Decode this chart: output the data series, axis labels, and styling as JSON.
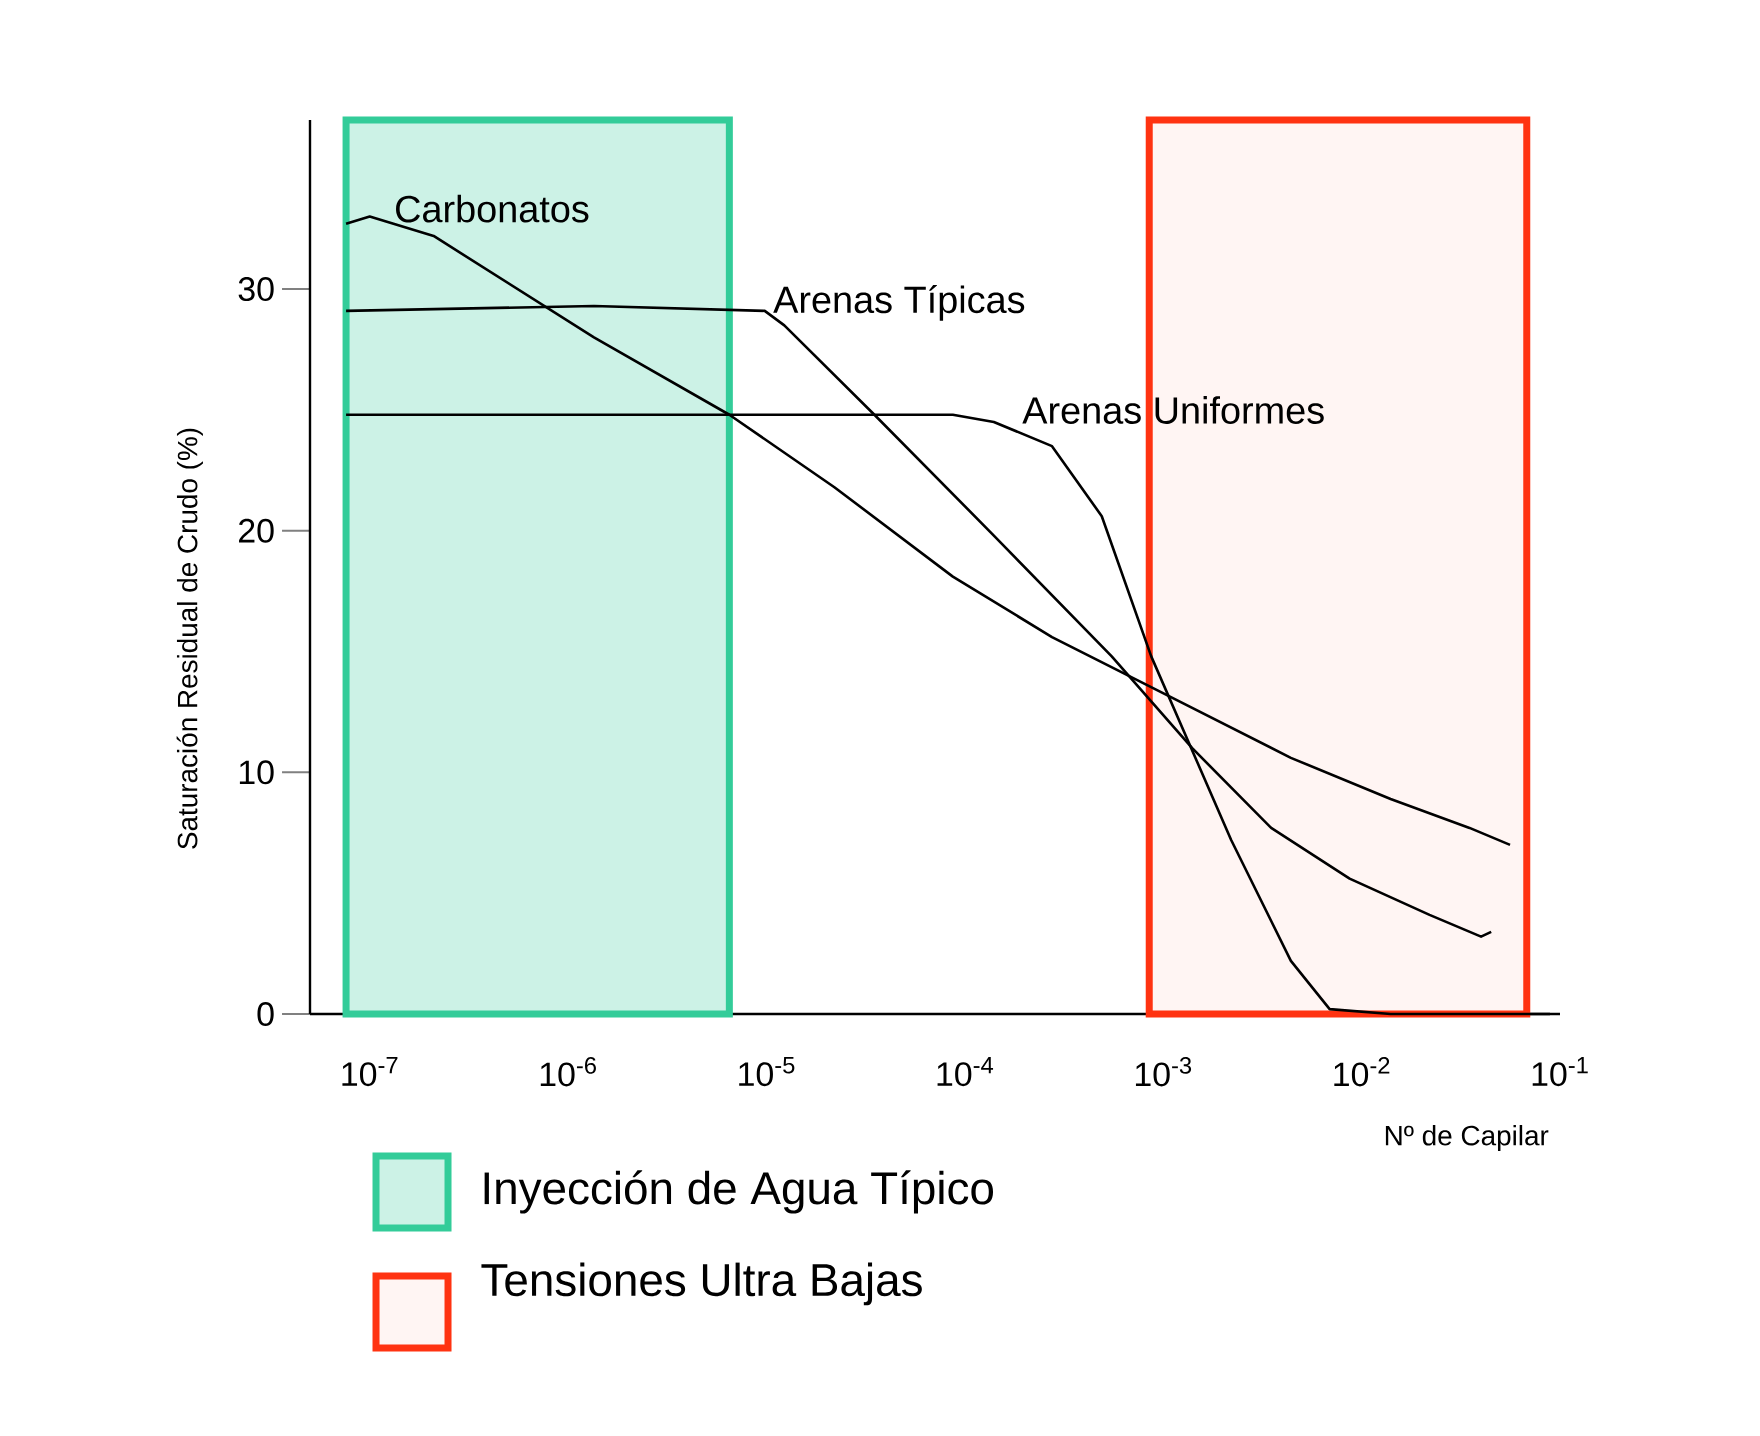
{
  "chart_data": {
    "type": "line",
    "xlabel": "Nº de Capilar",
    "ylabel": "Saturación Residual de Crudo (%)",
    "log": "x",
    "xlim": [
      5e-08,
      0.1
    ],
    "xticks": [
      {
        "value": 1e-07,
        "label": "10$^{-7}$"
      },
      {
        "value": 1e-06,
        "label": "10$^{-6}$"
      },
      {
        "value": 1e-05,
        "label": "10$^{-5}$"
      },
      {
        "value": 0.0001,
        "label": "10$^{-4}$"
      },
      {
        "value": 0.001,
        "label": "10$^{-3}$"
      },
      {
        "value": 0.01,
        "label": "10$^{-2}$"
      },
      {
        "value": 0.1,
        "label": "10$^{-1}$"
      }
    ],
    "ylim": [
      0,
      37
    ],
    "yticks": [
      0,
      10,
      20,
      30
    ],
    "grid": false,
    "marker": "none",
    "line_style": "solid",
    "legend": "bottom left",
    "bands": [
      {
        "axis": "x",
        "from": 7.6e-08,
        "to": 6.5e-06,
        "label": "Inyección de Agua Típico",
        "color": "#33cc99"
      },
      {
        "axis": "x",
        "from": 0.00085,
        "to": 0.068,
        "label": "Tensiones Ultra Bajas",
        "color": "#ff3311"
      }
    ],
    "series": [
      {
        "name": "Carbonatos",
        "color": "#000000",
        "x": [
          7.6e-08,
          1e-07,
          2.1e-07,
          1.35e-06,
          6.5e-06,
          2.2e-05,
          8.7e-05,
          0.000275,
          0.0011,
          0.0044,
          0.014,
          0.035,
          0.056
        ],
        "values": [
          32.7,
          33,
          32.2,
          28,
          24.8,
          21.8,
          18.1,
          15.6,
          13.1,
          10.6,
          8.9,
          7.7,
          7.0
        ]
      },
      {
        "name": "Arenas Típicas",
        "color": "#000000",
        "x": [
          7.6e-08,
          1.35e-06,
          9.8e-06,
          1.23e-05,
          3.5e-05,
          0.00014,
          0.00055,
          0.0014,
          0.0035,
          0.0087,
          0.022,
          0.04,
          0.045
        ],
        "values": [
          29.1,
          29.3,
          29.1,
          28.5,
          24.8,
          19.8,
          14.8,
          11,
          7.7,
          5.6,
          4.1,
          3.2,
          3.4
        ]
      },
      {
        "name": "Arenas Uniformes",
        "color": "#000000",
        "x": [
          7.6e-08,
          8.7e-05,
          0.00014,
          0.000275,
          0.00049,
          0.00087,
          0.0022,
          0.0044,
          0.0069,
          0.014,
          0.089
        ],
        "values": [
          24.8,
          24.8,
          24.5,
          23.5,
          20.6,
          14.8,
          7.2,
          2.2,
          0.2,
          0,
          0
        ]
      }
    ]
  }
}
